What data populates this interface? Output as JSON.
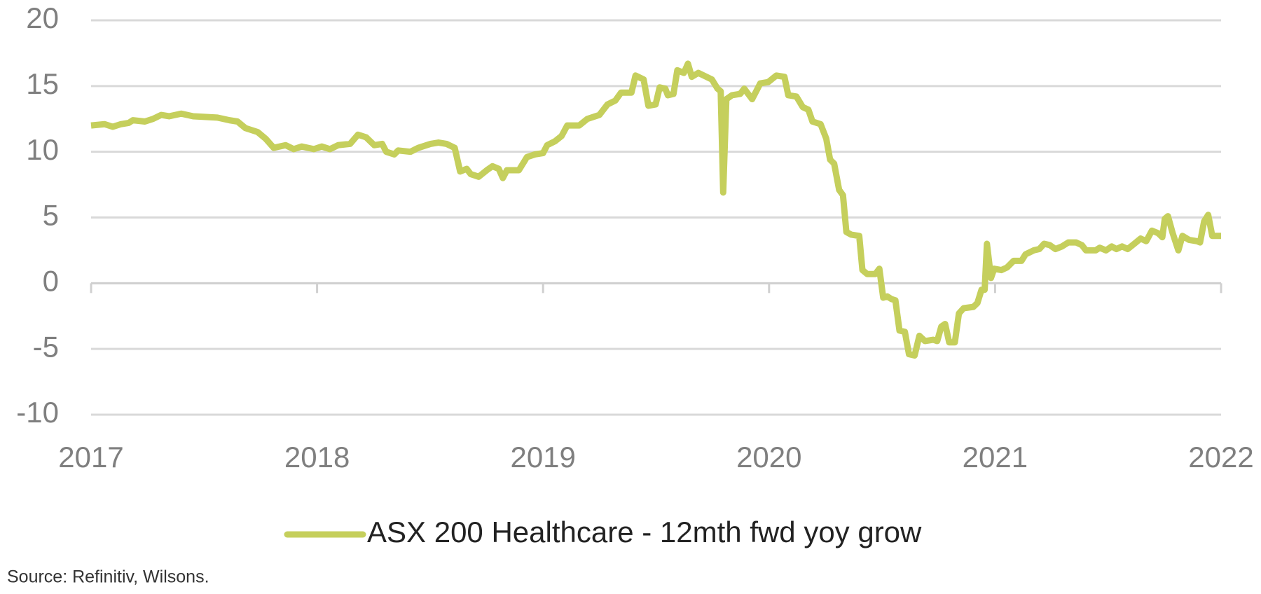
{
  "chart_data": {
    "type": "line",
    "series": [
      {
        "name": "ASX 200 Healthcare - 12mth fwd yoy grow",
        "color": "#c5cf5c",
        "x": [
          2017.0,
          2017.06,
          2017.096,
          2017.132,
          2017.167,
          2017.185,
          2017.238,
          2017.274,
          2017.31,
          2017.345,
          2017.399,
          2017.452,
          2017.559,
          2017.612,
          2017.648,
          2017.683,
          2017.737,
          2017.772,
          2017.808,
          2017.861,
          2017.897,
          2017.932,
          2017.986,
          2018.021,
          2018.057,
          2018.093,
          2018.146,
          2018.181,
          2018.217,
          2018.253,
          2018.288,
          2018.306,
          2018.342,
          2018.359,
          2018.413,
          2018.448,
          2018.502,
          2018.537,
          2018.573,
          2018.609,
          2018.633,
          2018.662,
          2018.68,
          2018.715,
          2018.751,
          2018.776,
          2018.804,
          2018.822,
          2018.84,
          2018.893,
          2018.929,
          2018.964,
          2019.0,
          2019.018,
          2019.053,
          2019.082,
          2019.107,
          2019.16,
          2019.196,
          2019.249,
          2019.285,
          2019.32,
          2019.345,
          2019.391,
          2019.409,
          2019.445,
          2019.466,
          2019.498,
          2019.516,
          2019.541,
          2019.552,
          2019.577,
          2019.594,
          2019.623,
          2019.641,
          2019.658,
          2019.687,
          2019.747,
          2019.772,
          2019.786,
          2019.797,
          2019.811,
          2019.836,
          2019.872,
          2019.89,
          2019.925,
          2019.961,
          2019.996,
          2020.032,
          2020.068,
          2020.085,
          2020.121,
          2020.149,
          2020.174,
          2020.192,
          2020.228,
          2020.253,
          2020.27,
          2020.288,
          2020.31,
          2020.327,
          2020.342,
          2020.363,
          2020.399,
          2020.413,
          2020.434,
          2020.47,
          2020.488,
          2020.505,
          2020.523,
          2020.541,
          2020.559,
          2020.577,
          2020.601,
          2020.619,
          2020.644,
          2020.665,
          2020.69,
          2020.726,
          2020.744,
          2020.762,
          2020.779,
          2020.797,
          2020.822,
          2020.84,
          2020.861,
          2020.904,
          2020.922,
          2020.94,
          2020.954,
          2020.964,
          2020.982,
          2020.996,
          2021.028,
          2021.053,
          2021.082,
          2021.117,
          2021.135,
          2021.171,
          2021.196,
          2021.217,
          2021.242,
          2021.267,
          2021.296,
          2021.324,
          2021.359,
          2021.384,
          2021.402,
          2021.445,
          2021.463,
          2021.491,
          2021.516,
          2021.537,
          2021.562,
          2021.587,
          2021.616,
          2021.644,
          2021.669,
          2021.694,
          2021.722,
          2021.74,
          2021.751,
          2021.765,
          2021.786,
          2021.811,
          2021.829,
          2021.858,
          2021.893,
          2021.907,
          2021.925,
          2021.943,
          2021.961,
          2022.0
        ],
        "values": [
          12.0,
          12.1,
          11.9,
          12.1,
          12.2,
          12.4,
          12.3,
          12.5,
          12.8,
          12.7,
          12.9,
          12.7,
          12.6,
          12.4,
          12.3,
          11.8,
          11.5,
          11.0,
          10.3,
          10.5,
          10.2,
          10.4,
          10.2,
          10.4,
          10.2,
          10.5,
          10.6,
          11.3,
          11.1,
          10.5,
          10.6,
          10.0,
          9.8,
          10.1,
          10.0,
          10.3,
          10.6,
          10.7,
          10.6,
          10.3,
          8.5,
          8.7,
          8.3,
          8.1,
          8.6,
          8.9,
          8.7,
          8.0,
          8.6,
          8.6,
          9.6,
          9.8,
          9.9,
          10.5,
          10.8,
          11.2,
          12.0,
          12.0,
          12.5,
          12.8,
          13.6,
          13.9,
          14.5,
          14.5,
          15.8,
          15.5,
          13.5,
          13.6,
          14.9,
          14.8,
          14.3,
          14.4,
          16.2,
          16.0,
          16.7,
          15.7,
          16.0,
          15.5,
          14.8,
          14.6,
          6.9,
          14.0,
          14.3,
          14.4,
          14.8,
          14.0,
          15.2,
          15.3,
          15.8,
          15.7,
          14.3,
          14.2,
          13.4,
          13.2,
          12.3,
          12.1,
          11.0,
          9.4,
          9.1,
          7.1,
          6.7,
          3.9,
          3.7,
          3.6,
          1.0,
          0.7,
          0.7,
          1.1,
          -1.1,
          -1.0,
          -1.2,
          -1.3,
          -3.6,
          -3.7,
          -5.4,
          -5.5,
          -4.0,
          -4.4,
          -4.3,
          -4.4,
          -3.3,
          -3.1,
          -4.5,
          -4.5,
          -2.3,
          -1.9,
          -1.8,
          -1.5,
          -0.5,
          -0.5,
          3.0,
          0.4,
          1.1,
          1.0,
          1.2,
          1.7,
          1.7,
          2.2,
          2.5,
          2.6,
          3.0,
          2.9,
          2.6,
          2.8,
          3.1,
          3.1,
          2.9,
          2.5,
          2.5,
          2.7,
          2.5,
          2.8,
          2.6,
          2.8,
          2.6,
          3.0,
          3.4,
          3.2,
          4.0,
          3.8,
          3.5,
          4.9,
          5.1,
          3.8,
          2.5,
          3.6,
          3.3,
          3.2,
          3.1,
          4.7,
          5.2,
          3.6,
          3.6
        ]
      }
    ],
    "xlim": [
      2017,
      2022
    ],
    "xticks": [
      2017,
      2018,
      2019,
      2020,
      2021,
      2022
    ],
    "ylim": [
      -10,
      20
    ],
    "yticks": [
      -10,
      -5,
      0,
      5,
      10,
      15,
      20
    ],
    "grid": true,
    "legend": "bottom",
    "source": "Source: Refinitiv, Wilsons."
  }
}
